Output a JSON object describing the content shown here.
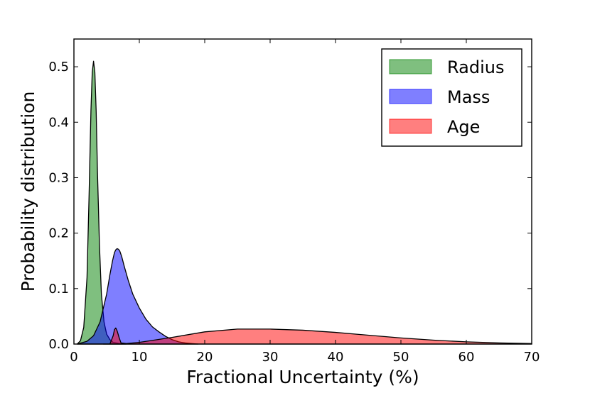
{
  "chart_data": {
    "type": "area",
    "xlabel": "Fractional Uncertainty (%)",
    "ylabel": "Probability distribution",
    "xlim": [
      0,
      70
    ],
    "ylim": [
      0,
      0.55
    ],
    "xticks": [
      0,
      10,
      20,
      30,
      40,
      50,
      60,
      70
    ],
    "yticks": [
      0.0,
      0.1,
      0.2,
      0.3,
      0.4,
      0.5
    ],
    "xtick_labels": [
      "0",
      "10",
      "20",
      "30",
      "40",
      "50",
      "60",
      "70"
    ],
    "ytick_labels": [
      "0.0",
      "0.1",
      "0.2",
      "0.3",
      "0.4",
      "0.5"
    ],
    "grid": false,
    "legend_position": "top-right",
    "series": [
      {
        "name": "Radius",
        "color": "#008000",
        "fill_opacity": 0.5,
        "x": [
          0.5,
          1.0,
          1.5,
          2.0,
          2.3,
          2.6,
          2.8,
          3.0,
          3.2,
          3.4,
          3.6,
          3.9,
          4.2,
          4.6,
          5.0,
          5.5,
          6.0,
          7.0,
          8.0
        ],
        "y": [
          0.0,
          0.006,
          0.03,
          0.12,
          0.26,
          0.42,
          0.49,
          0.51,
          0.49,
          0.42,
          0.31,
          0.18,
          0.09,
          0.04,
          0.018,
          0.008,
          0.003,
          0.001,
          0.0
        ]
      },
      {
        "name": "Mass",
        "color": "#0000ff",
        "fill_opacity": 0.5,
        "x": [
          0.5,
          2.0,
          3.0,
          4.0,
          5.0,
          5.5,
          5.9,
          6.2,
          6.4,
          6.6,
          6.8,
          7.0,
          7.3,
          7.7,
          8.3,
          9.0,
          10.0,
          11.0,
          12.0,
          13.0,
          14.0,
          15.0,
          16.0,
          17.0,
          18.0,
          19.0
        ],
        "y": [
          0.0,
          0.005,
          0.015,
          0.04,
          0.09,
          0.125,
          0.15,
          0.165,
          0.17,
          0.172,
          0.171,
          0.168,
          0.158,
          0.14,
          0.115,
          0.09,
          0.065,
          0.045,
          0.031,
          0.022,
          0.014,
          0.008,
          0.004,
          0.002,
          0.001,
          0.0
        ]
      },
      {
        "name": "Age",
        "color": "#ff0000",
        "fill_opacity": 0.5,
        "x": [
          4.5,
          5.5,
          6.0,
          6.2,
          6.4,
          6.6,
          6.9,
          7.2,
          8.0,
          10.0,
          15.0,
          20.0,
          25.0,
          30.0,
          35.0,
          40.0,
          45.0,
          50.0,
          55.0,
          60.0,
          65.0,
          70.0
        ],
        "y": [
          0.0,
          0.0,
          0.015,
          0.026,
          0.029,
          0.024,
          0.012,
          0.002,
          0.001,
          0.003,
          0.012,
          0.022,
          0.027,
          0.027,
          0.025,
          0.021,
          0.016,
          0.011,
          0.007,
          0.004,
          0.002,
          0.001
        ]
      }
    ]
  }
}
